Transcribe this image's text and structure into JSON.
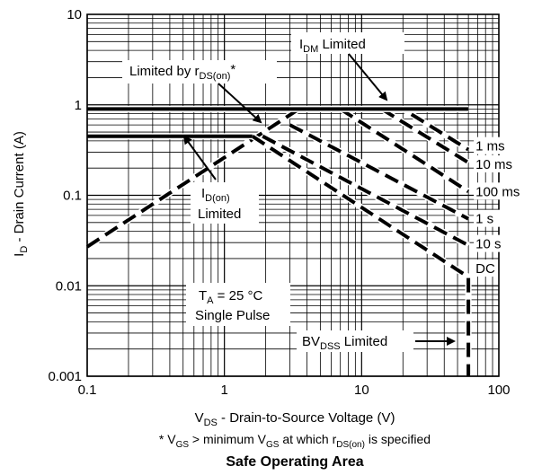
{
  "chart_data": {
    "type": "line",
    "title": "Safe Operating Area",
    "x_scale": "log",
    "y_scale": "log",
    "xlim": [
      0.1,
      100
    ],
    "ylim": [
      0.001,
      10
    ],
    "grid": true,
    "x_ticks": [
      {
        "v": 0.1,
        "t": "0.1"
      },
      {
        "v": 1,
        "t": "1"
      },
      {
        "v": 10,
        "t": "10"
      },
      {
        "v": 100,
        "t": "100"
      }
    ],
    "y_ticks": [
      {
        "v": 10,
        "t": "10"
      },
      {
        "v": 1,
        "t": "1"
      },
      {
        "v": 0.1,
        "t": "0.1"
      },
      {
        "v": 0.01,
        "t": "0.01"
      },
      {
        "v": 0.001,
        "t": "0.001"
      }
    ],
    "xlabel": {
      "main": "V",
      "sub": "DS",
      "rest": " - Drain-to-Source Voltage (V)"
    },
    "ylabel": {
      "main": "I",
      "sub": "D",
      "rest": " - Drain Current (A)"
    },
    "footnote": {
      "a": "* V",
      "b": "GS",
      "c": " >  minimum V",
      "d": "GS",
      "e": " at which r",
      "f": "DS(on)",
      "g": " is specified"
    },
    "series": [
      {
        "name": "1 ms",
        "dash": true,
        "x": [
          0.1,
          3.5,
          20,
          60
        ],
        "y": [
          0.027,
          0.9,
          0.9,
          0.32
        ]
      },
      {
        "name": "10 ms",
        "dash": true,
        "x": [
          14,
          60
        ],
        "y": [
          0.9,
          0.23
        ]
      },
      {
        "name": "100 ms",
        "dash": true,
        "x": [
          7,
          60
        ],
        "y": [
          0.9,
          0.11
        ]
      },
      {
        "name": "1 s",
        "dash": true,
        "x": [
          3,
          60
        ],
        "y": [
          0.6,
          0.055
        ]
      },
      {
        "name": "10 s",
        "dash": true,
        "x": [
          1.9,
          60
        ],
        "y": [
          0.45,
          0.028
        ]
      },
      {
        "name": "DC",
        "dash": true,
        "x": [
          1.6,
          60,
          60
        ],
        "y": [
          0.45,
          0.0125,
          0.001
        ]
      },
      {
        "name": "ID(on) Limited",
        "dash": false,
        "x": [
          0.1,
          1.6
        ],
        "y": [
          0.45,
          0.45
        ]
      },
      {
        "name": "IDM Limited",
        "dash": false,
        "x": [
          0.1,
          60
        ],
        "y": [
          0.9,
          0.9
        ]
      }
    ],
    "curve_labels": [
      {
        "text": "1 ms",
        "x": 70,
        "y": 0.35
      },
      {
        "text": "10 ms",
        "x": 70,
        "y": 0.22
      },
      {
        "text": "100 ms",
        "x": 70,
        "y": 0.11
      },
      {
        "text": "1 s",
        "x": 70,
        "y": 0.055
      },
      {
        "text": "10 s",
        "x": 70,
        "y": 0.029
      },
      {
        "text": "DC",
        "x": 70,
        "y": 0.0155
      }
    ],
    "annotations": {
      "idm": {
        "main": "I",
        "sub": "DM",
        "rest": " Limited"
      },
      "rds": {
        "main": "Limited by r",
        "sub": "DS(on)",
        "rest": "*"
      },
      "idon": {
        "main": "I",
        "sub": "D(on)",
        "line2": "Limited"
      },
      "ta": {
        "main": "T",
        "sub": "A",
        "rest": " = 25 °C",
        "line2": "Single Pulse"
      },
      "bvdss": {
        "main": "BV",
        "sub": "DSS",
        "rest": " Limited"
      }
    }
  }
}
